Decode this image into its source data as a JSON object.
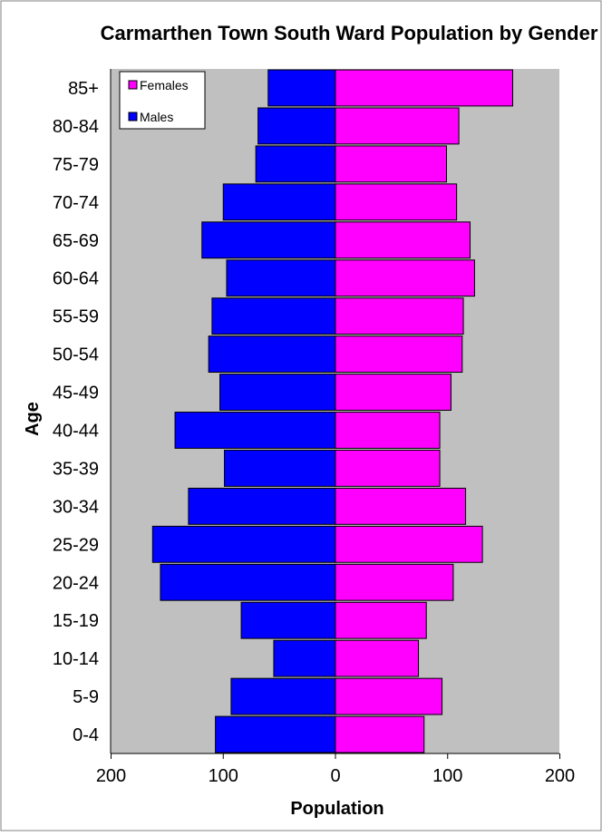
{
  "chart_data": {
    "type": "bar",
    "orientation": "horizontal",
    "title": "Carmarthen Town South Ward Population by Gender",
    "xlabel": "Population",
    "ylabel": "Age",
    "xlim": [
      -200,
      200
    ],
    "x_ticks": [
      -200,
      -100,
      0,
      100,
      200
    ],
    "x_tick_labels": [
      "200",
      "100",
      "0",
      "100",
      "200"
    ],
    "categories": [
      "0-4",
      "5-9",
      "10-14",
      "15-19",
      "20-24",
      "25-29",
      "30-34",
      "35-39",
      "40-44",
      "45-49",
      "50-54",
      "55-59",
      "60-64",
      "65-69",
      "70-74",
      "75-79",
      "80-84",
      "85+"
    ],
    "series": [
      {
        "name": "Females",
        "color": "#ff00ff",
        "values": [
          79,
          95,
          74,
          81,
          105,
          131,
          116,
          93,
          93,
          103,
          113,
          114,
          124,
          120,
          108,
          99,
          110,
          158
        ]
      },
      {
        "name": "Males",
        "color": "#0000ff",
        "values": [
          107,
          93,
          55,
          84,
          156,
          163,
          131,
          99,
          143,
          103,
          113,
          110,
          97,
          119,
          100,
          71,
          69,
          60
        ]
      }
    ],
    "legend_position": "top-left",
    "plot_background": "#c0c0c0",
    "grid": false
  }
}
